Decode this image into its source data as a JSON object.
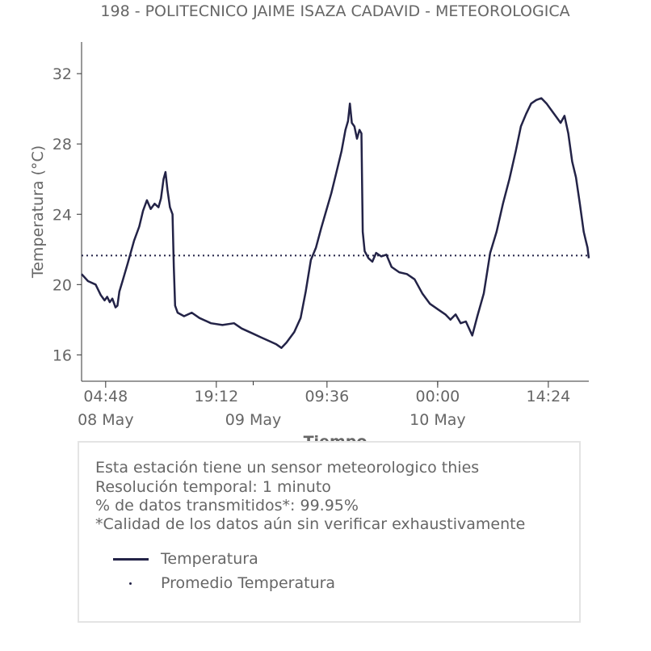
{
  "chart_data": {
    "type": "line",
    "title": "198 - POLITECNICO JAIME ISAZA CADAVID - METEOROLOGICA",
    "xlabel": "Tiempo",
    "ylabel": "Temperatura (°C)",
    "ylim": [
      14.5,
      33.8
    ],
    "yticks": [
      16,
      20,
      24,
      28,
      32
    ],
    "xlim": [
      "2024-05-08T01:40",
      "2024-05-10T19:40"
    ],
    "xticks": [
      {
        "x": "2024-05-08T04:48",
        "label": "04:48",
        "date_label": "08 May"
      },
      {
        "x": "2024-05-08T19:12",
        "label": "19:12",
        "date_label": ""
      },
      {
        "x": "2024-05-09T00:00",
        "label": "",
        "date_label": "09 May"
      },
      {
        "x": "2024-05-09T09:36",
        "label": "09:36",
        "date_label": ""
      },
      {
        "x": "2024-05-10T00:00",
        "label": "00:00",
        "date_label": "10 May"
      },
      {
        "x": "2024-05-10T14:24",
        "label": "14:24",
        "date_label": ""
      }
    ],
    "grid": false,
    "series": [
      {
        "name": "Temperatura",
        "color": "#232347",
        "style": "solid",
        "points": [
          [
            "2024-05-08T01:40",
            20.6
          ],
          [
            "2024-05-08T02:30",
            20.2
          ],
          [
            "2024-05-08T03:30",
            20.0
          ],
          [
            "2024-05-08T04:10",
            19.4
          ],
          [
            "2024-05-08T04:40",
            19.1
          ],
          [
            "2024-05-08T05:00",
            19.3
          ],
          [
            "2024-05-08T05:20",
            19.0
          ],
          [
            "2024-05-08T05:40",
            19.2
          ],
          [
            "2024-05-08T06:05",
            18.7
          ],
          [
            "2024-05-08T06:20",
            18.8
          ],
          [
            "2024-05-08T06:35",
            19.6
          ],
          [
            "2024-05-08T07:00",
            20.2
          ],
          [
            "2024-05-08T07:40",
            21.2
          ],
          [
            "2024-05-08T08:30",
            22.5
          ],
          [
            "2024-05-08T09:10",
            23.3
          ],
          [
            "2024-05-08T09:40",
            24.2
          ],
          [
            "2024-05-08T10:10",
            24.8
          ],
          [
            "2024-05-08T10:40",
            24.3
          ],
          [
            "2024-05-08T11:10",
            24.6
          ],
          [
            "2024-05-08T11:40",
            24.4
          ],
          [
            "2024-05-08T12:00",
            24.9
          ],
          [
            "2024-05-08T12:20",
            26.0
          ],
          [
            "2024-05-08T12:35",
            26.4
          ],
          [
            "2024-05-08T12:50",
            25.4
          ],
          [
            "2024-05-08T13:10",
            24.4
          ],
          [
            "2024-05-08T13:30",
            24.0
          ],
          [
            "2024-05-08T13:40",
            21.0
          ],
          [
            "2024-05-08T13:50",
            18.8
          ],
          [
            "2024-05-08T14:10",
            18.4
          ],
          [
            "2024-05-08T15:00",
            18.2
          ],
          [
            "2024-05-08T16:00",
            18.4
          ],
          [
            "2024-05-08T17:00",
            18.1
          ],
          [
            "2024-05-08T18:30",
            17.8
          ],
          [
            "2024-05-08T20:00",
            17.7
          ],
          [
            "2024-05-08T21:30",
            17.8
          ],
          [
            "2024-05-08T22:30",
            17.5
          ],
          [
            "2024-05-09T00:00",
            17.2
          ],
          [
            "2024-05-09T01:00",
            17.0
          ],
          [
            "2024-05-09T02:00",
            16.8
          ],
          [
            "2024-05-09T03:00",
            16.6
          ],
          [
            "2024-05-09T03:40",
            16.4
          ],
          [
            "2024-05-09T04:20",
            16.7
          ],
          [
            "2024-05-09T05:20",
            17.3
          ],
          [
            "2024-05-09T06:10",
            18.1
          ],
          [
            "2024-05-09T06:50",
            19.6
          ],
          [
            "2024-05-09T07:30",
            21.4
          ],
          [
            "2024-05-09T08:10",
            22.1
          ],
          [
            "2024-05-09T08:50",
            23.2
          ],
          [
            "2024-05-09T09:30",
            24.2
          ],
          [
            "2024-05-09T10:10",
            25.2
          ],
          [
            "2024-05-09T10:50",
            26.4
          ],
          [
            "2024-05-09T11:30",
            27.6
          ],
          [
            "2024-05-09T12:00",
            28.8
          ],
          [
            "2024-05-09T12:20",
            29.3
          ],
          [
            "2024-05-09T12:35",
            30.3
          ],
          [
            "2024-05-09T12:50",
            29.2
          ],
          [
            "2024-05-09T13:10",
            29.0
          ],
          [
            "2024-05-09T13:30",
            28.3
          ],
          [
            "2024-05-09T13:50",
            28.8
          ],
          [
            "2024-05-09T14:05",
            28.6
          ],
          [
            "2024-05-09T14:15",
            23.0
          ],
          [
            "2024-05-09T14:30",
            21.9
          ],
          [
            "2024-05-09T15:00",
            21.5
          ],
          [
            "2024-05-09T15:30",
            21.3
          ],
          [
            "2024-05-09T16:00",
            21.8
          ],
          [
            "2024-05-09T16:40",
            21.6
          ],
          [
            "2024-05-09T17:20",
            21.7
          ],
          [
            "2024-05-09T18:00",
            21.0
          ],
          [
            "2024-05-09T19:00",
            20.7
          ],
          [
            "2024-05-09T20:00",
            20.6
          ],
          [
            "2024-05-09T21:00",
            20.3
          ],
          [
            "2024-05-09T22:00",
            19.5
          ],
          [
            "2024-05-09T23:00",
            18.9
          ],
          [
            "2024-05-10T00:00",
            18.6
          ],
          [
            "2024-05-10T01:00",
            18.3
          ],
          [
            "2024-05-10T01:40",
            18.0
          ],
          [
            "2024-05-10T02:20",
            18.3
          ],
          [
            "2024-05-10T03:00",
            17.8
          ],
          [
            "2024-05-10T03:40",
            17.9
          ],
          [
            "2024-05-10T04:30",
            17.1
          ],
          [
            "2024-05-10T05:10",
            18.2
          ],
          [
            "2024-05-10T06:00",
            19.5
          ],
          [
            "2024-05-10T06:50",
            21.8
          ],
          [
            "2024-05-10T07:40",
            23.0
          ],
          [
            "2024-05-10T08:30",
            24.6
          ],
          [
            "2024-05-10T09:20",
            26.0
          ],
          [
            "2024-05-10T10:10",
            27.6
          ],
          [
            "2024-05-10T10:50",
            29.0
          ],
          [
            "2024-05-10T11:30",
            29.7
          ],
          [
            "2024-05-10T12:10",
            30.3
          ],
          [
            "2024-05-10T12:50",
            30.5
          ],
          [
            "2024-05-10T13:30",
            30.6
          ],
          [
            "2024-05-10T14:10",
            30.3
          ],
          [
            "2024-05-10T14:50",
            29.9
          ],
          [
            "2024-05-10T15:30",
            29.5
          ],
          [
            "2024-05-10T16:00",
            29.2
          ],
          [
            "2024-05-10T16:30",
            29.6
          ],
          [
            "2024-05-10T17:00",
            28.6
          ],
          [
            "2024-05-10T17:30",
            27.0
          ],
          [
            "2024-05-10T18:00",
            26.1
          ],
          [
            "2024-05-10T18:30",
            24.6
          ],
          [
            "2024-05-10T19:00",
            23.0
          ],
          [
            "2024-05-10T19:20",
            22.4
          ],
          [
            "2024-05-10T19:30",
            22.1
          ],
          [
            "2024-05-10T19:40",
            21.5
          ]
        ]
      },
      {
        "name": "Promedio Temperatura",
        "color": "#232347",
        "style": "dotted",
        "value": 21.65
      }
    ]
  },
  "info": {
    "lines": [
      "Esta estación tiene un sensor meteorologico thies",
      "Resolución temporal: 1 minuto",
      "% de datos transmitidos*: 99.95%",
      "*Calidad de los datos aún sin verificar exhaustivamente"
    ]
  }
}
